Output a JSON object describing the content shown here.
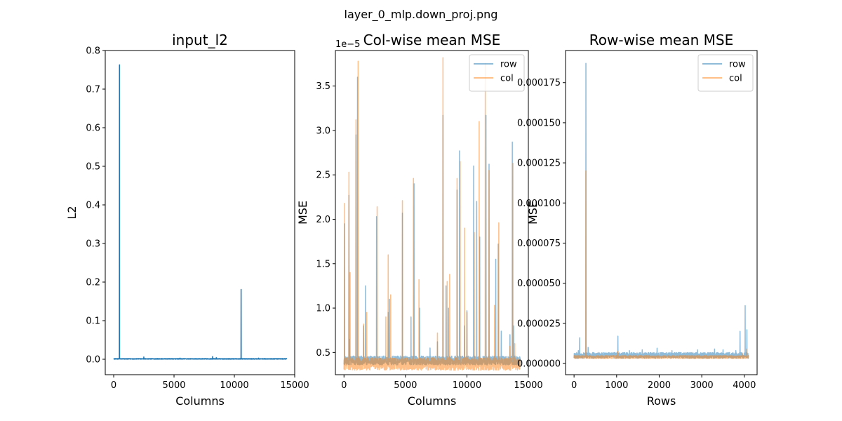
{
  "figure": {
    "suptitle": "layer_0_mlp.down_proj.png"
  },
  "colors": {
    "primary": "#1f77b4",
    "row": "#1f77b4",
    "col": "#ff7f0e",
    "axes": "#000000",
    "background": "#ffffff"
  },
  "chart_data": [
    {
      "type": "line",
      "title": "input_l2",
      "xlabel": "Columns",
      "ylabel": "L2",
      "xlim": [
        -700,
        15000
      ],
      "ylim": [
        -0.04,
        0.8
      ],
      "xticks": [
        0,
        5000,
        10000,
        15000
      ],
      "yticks": [
        0.0,
        0.1,
        0.2,
        0.3,
        0.4,
        0.5,
        0.6,
        0.7,
        0.8
      ],
      "ytick_labels": [
        "0.0",
        "0.1",
        "0.2",
        "0.3",
        "0.4",
        "0.5",
        "0.6",
        "0.7",
        "0.8"
      ],
      "grid": false,
      "series": [
        {
          "x_range": [
            0,
            14336
          ],
          "baseline": 0.001,
          "noise": 0.0008,
          "color": "#1f77b4",
          "opacity": 1,
          "peaks": [
            [
              480,
              0.763
            ],
            [
              2500,
              0.006
            ],
            [
              5500,
              0.003
            ],
            [
              8200,
              0.007
            ],
            [
              8500,
              0.004
            ],
            [
              10560,
              0.181
            ],
            [
              12000,
              0.003
            ]
          ]
        }
      ]
    },
    {
      "type": "line",
      "title": "Col-wise mean MSE",
      "xlabel": "Columns",
      "ylabel": "MSE",
      "offset_text": "1e−5",
      "xlim": [
        -700,
        15000
      ],
      "ylim": [
        0.25,
        3.9
      ],
      "xticks": [
        0,
        5000,
        10000,
        15000
      ],
      "yticks": [
        0.5,
        1.0,
        1.5,
        2.0,
        2.5,
        3.0,
        3.5
      ],
      "ytick_labels": [
        "0.5",
        "1.0",
        "1.5",
        "2.0",
        "2.5",
        "3.0",
        "3.5"
      ],
      "legend": "upper-right",
      "grid": false,
      "series": [
        {
          "name": "row",
          "x_range": [
            0,
            14336
          ],
          "baseline": 0.41,
          "noise": 0.05,
          "color": "#1f77b4",
          "opacity": 0.5,
          "peaks": [
            [
              50,
              1.95
            ],
            [
              400,
              2.27
            ],
            [
              450,
              0.65
            ],
            [
              980,
              2.95
            ],
            [
              1100,
              3.6
            ],
            [
              1600,
              0.8
            ],
            [
              1750,
              1.25
            ],
            [
              2650,
              2.03
            ],
            [
              3100,
              0.45
            ],
            [
              3600,
              0.95
            ],
            [
              3700,
              1.1
            ],
            [
              4750,
              2.07
            ],
            [
              5450,
              0.9
            ],
            [
              5700,
              2.4
            ],
            [
              6150,
              1.0
            ],
            [
              7000,
              0.55
            ],
            [
              7600,
              0.62
            ],
            [
              8050,
              3.17
            ],
            [
              8300,
              1.25
            ],
            [
              8500,
              1.0
            ],
            [
              9200,
              2.33
            ],
            [
              9400,
              2.77
            ],
            [
              9800,
              0.8
            ],
            [
              10000,
              0.97
            ],
            [
              10550,
              2.6
            ],
            [
              10800,
              2.2
            ],
            [
              11050,
              1.8
            ],
            [
              11550,
              3.17
            ],
            [
              11800,
              2.62
            ],
            [
              12350,
              1.55
            ],
            [
              12550,
              1.72
            ],
            [
              12800,
              0.74
            ],
            [
              13500,
              0.7
            ],
            [
              13700,
              2.87
            ],
            [
              13800,
              0.8
            ]
          ]
        },
        {
          "name": "col",
          "x_range": [
            0,
            14336
          ],
          "baseline": 0.37,
          "noise": 0.07,
          "color": "#ff7f0e",
          "opacity": 0.5,
          "peaks": [
            [
              50,
              2.18
            ],
            [
              400,
              2.53
            ],
            [
              500,
              1.4
            ],
            [
              980,
              3.12
            ],
            [
              1150,
              3.78
            ],
            [
              1600,
              0.82
            ],
            [
              1850,
              0.95
            ],
            [
              2700,
              2.14
            ],
            [
              3400,
              0.9
            ],
            [
              3600,
              1.6
            ],
            [
              3800,
              1.15
            ],
            [
              4750,
              2.21
            ],
            [
              5650,
              2.46
            ],
            [
              6100,
              1.32
            ],
            [
              6600,
              0.42
            ],
            [
              7600,
              0.72
            ],
            [
              8050,
              3.82
            ],
            [
              8400,
              1.3
            ],
            [
              8600,
              1.38
            ],
            [
              9200,
              2.46
            ],
            [
              9450,
              2.65
            ],
            [
              9800,
              1.9
            ],
            [
              10000,
              0.95
            ],
            [
              10600,
              1.85
            ],
            [
              11000,
              3.1
            ],
            [
              11500,
              3.76
            ],
            [
              11800,
              2.55
            ],
            [
              12250,
              1.03
            ],
            [
              12600,
              1.96
            ],
            [
              13500,
              0.57
            ],
            [
              13750,
              2.63
            ],
            [
              13900,
              0.6
            ]
          ]
        }
      ]
    },
    {
      "type": "line",
      "title": "Row-wise mean MSE",
      "xlabel": "Rows",
      "ylabel": "MSE",
      "xlim": [
        -200,
        4300
      ],
      "ylim": [
        -7e-06,
        0.000195
      ],
      "xticks": [
        0,
        1000,
        2000,
        3000,
        4000
      ],
      "yticks": [
        0.0,
        2.5e-05,
        5e-05,
        7.5e-05,
        0.0001,
        0.000125,
        0.00015,
        0.000175
      ],
      "ytick_labels": [
        "0.000000",
        "0.000025",
        "0.000050",
        "0.000075",
        "0.000100",
        "0.000125",
        "0.000150",
        "0.000175"
      ],
      "legend": "upper-right",
      "grid": false,
      "series": [
        {
          "name": "row",
          "x_range": [
            0,
            4096
          ],
          "baseline": 5e-06,
          "noise": 1.8e-06,
          "color": "#1f77b4",
          "opacity": 0.5,
          "peaks": [
            [
              100,
              8e-06
            ],
            [
              130,
              1.6e-05
            ],
            [
              280,
              0.000187
            ],
            [
              330,
              1e-05
            ],
            [
              1030,
              1.7e-05
            ],
            [
              1300,
              8e-06
            ],
            [
              1600,
              8.5e-06
            ],
            [
              1950,
              9.5e-06
            ],
            [
              2300,
              8e-06
            ],
            [
              2900,
              8.5e-06
            ],
            [
              3300,
              9e-06
            ],
            [
              3500,
              8.5e-06
            ],
            [
              3800,
              8e-06
            ],
            [
              3900,
              2e-05
            ],
            [
              4020,
              3.6e-05
            ],
            [
              4060,
              2.1e-05
            ]
          ]
        },
        {
          "name": "col",
          "x_range": [
            0,
            4096
          ],
          "baseline": 4e-06,
          "noise": 9e-07,
          "color": "#ff7f0e",
          "opacity": 0.5,
          "peaks": [
            [
              280,
              0.00012
            ],
            [
              1030,
              7.5e-06
            ],
            [
              3950,
              6.5e-06
            ],
            [
              4050,
              9e-06
            ]
          ]
        }
      ]
    }
  ]
}
